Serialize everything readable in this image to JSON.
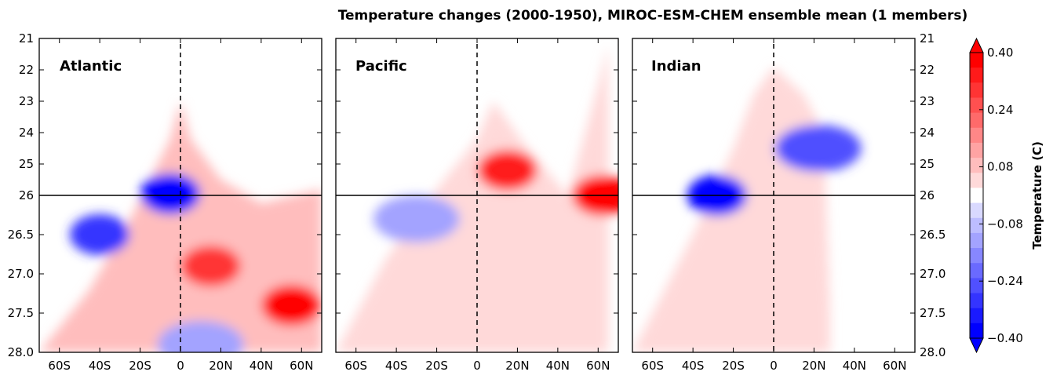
{
  "chart_data": {
    "type": "heatmap",
    "title": "Temperature changes (2000-1950), MIROC-ESM-CHEM ensemble mean (1 members)",
    "x_ticks": [
      "60S",
      "40S",
      "20S",
      "0",
      "20N",
      "40N",
      "60N"
    ],
    "x_tick_values": [
      -60,
      -40,
      -20,
      0,
      20,
      40,
      60
    ],
    "xlim": [
      -70,
      70
    ],
    "y_ticks_upper": [
      "21",
      "22",
      "23",
      "24",
      "25",
      "26"
    ],
    "y_ticks_lower": [
      "26.5",
      "27.0",
      "27.5",
      "28.0"
    ],
    "y_upper_range": [
      21,
      26
    ],
    "y_lower_range": [
      26,
      28
    ],
    "colorbar": {
      "label": "Temperature (C)",
      "ticks": [
        "0.40",
        "0.24",
        "0.08",
        "−0.08",
        "−0.24",
        "−0.40"
      ],
      "range": [
        -0.4,
        0.4
      ],
      "colors": [
        "#0000ff",
        "#1a1aff",
        "#3434ff",
        "#5050ff",
        "#6a6aff",
        "#8787ff",
        "#a3a3ff",
        "#bdbdff",
        "#d9d9ff",
        "#ffffff",
        "#ffd9d9",
        "#ffbdbd",
        "#ffa3a3",
        "#ff8787",
        "#ff6a6a",
        "#ff5050",
        "#ff3434",
        "#ff1a1a",
        "#ff0000"
      ]
    },
    "series": [
      {
        "name": "Atlantic",
        "features": [
          {
            "label": "negative core near equator",
            "lat": -5,
            "depth": 25.95,
            "value": -0.38
          },
          {
            "label": "negative patch",
            "lat": -40,
            "depth": 26.5,
            "value": -0.3
          },
          {
            "label": "positive band",
            "lat": 15,
            "depth": 26.9,
            "value": 0.3
          },
          {
            "label": "positive north",
            "lat": 55,
            "depth": 27.4,
            "value": 0.38
          },
          {
            "label": "negative deep band",
            "lat": 10,
            "depth": 27.9,
            "value": -0.12
          }
        ]
      },
      {
        "name": "Pacific",
        "features": [
          {
            "label": "positive tropical",
            "lat": 15,
            "depth": 25.2,
            "value": 0.35
          },
          {
            "label": "positive high latitude",
            "lat": 62,
            "depth": 26.0,
            "value": 0.4
          },
          {
            "label": "negative south",
            "lat": -30,
            "depth": 26.3,
            "value": -0.15
          },
          {
            "label": "weak positive interior",
            "lat": 0,
            "depth": 27.0,
            "value": 0.05
          }
        ]
      },
      {
        "name": "Indian",
        "features": [
          {
            "label": "negative core",
            "lat": -28,
            "depth": 26.0,
            "value": -0.38
          },
          {
            "label": "negative north",
            "lat": 22,
            "depth": 24.5,
            "value": -0.25
          },
          {
            "label": "weak positive interior",
            "lat": -5,
            "depth": 26.5,
            "value": 0.04
          }
        ]
      }
    ]
  }
}
